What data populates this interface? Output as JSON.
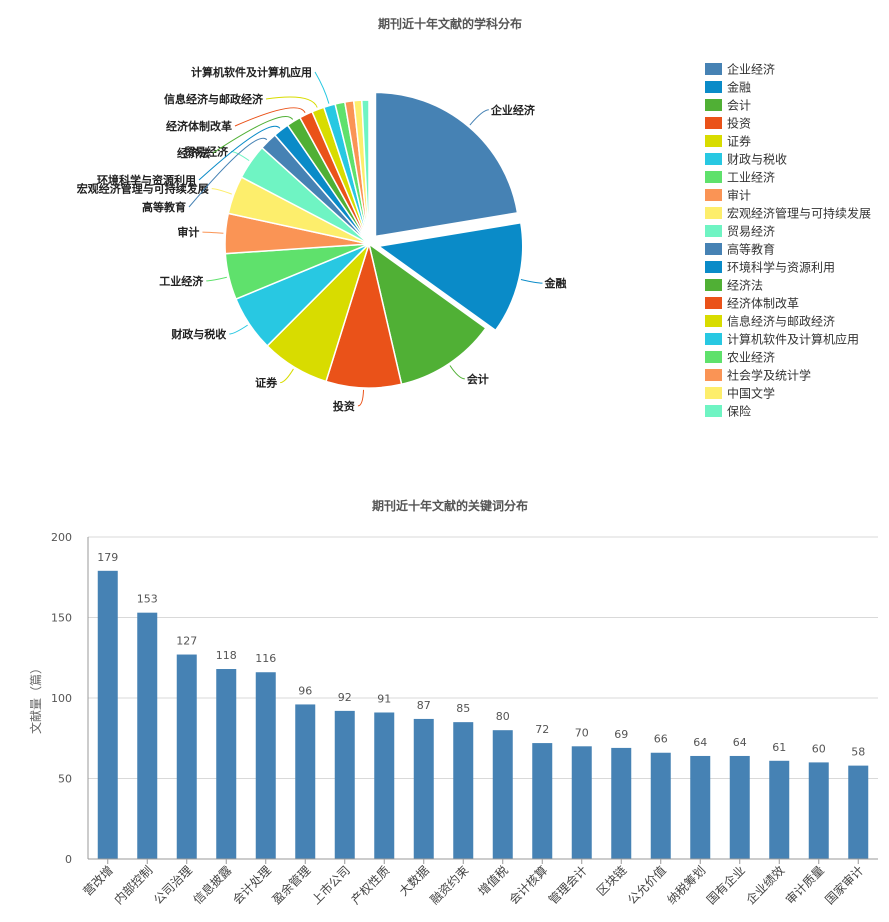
{
  "chart_data": [
    {
      "type": "pie",
      "title": "期刊近十年文献的学科分布",
      "legend_position": "right",
      "slices": [
        {
          "name": "企业经济",
          "value": 22.5,
          "color": "#4682b4"
        },
        {
          "name": "金融",
          "value": 12.6,
          "color": "#0a8bc8"
        },
        {
          "name": "会计",
          "value": 11.5,
          "color": "#50b035"
        },
        {
          "name": "投资",
          "value": 8.5,
          "color": "#ea5219"
        },
        {
          "name": "证券",
          "value": 7.7,
          "color": "#d8dc00"
        },
        {
          "name": "财政与税收",
          "value": 6.3,
          "color": "#28c8e2"
        },
        {
          "name": "工业经济",
          "value": 5.2,
          "color": "#5fe16c"
        },
        {
          "name": "审计",
          "value": 4.5,
          "color": "#fa9455"
        },
        {
          "name": "宏观经济管理与可持续发展",
          "value": 4.3,
          "color": "#fdee6c"
        },
        {
          "name": "贸易经济",
          "value": 4.0,
          "color": "#6ff4c3"
        },
        {
          "name": "高等教育",
          "value": 2.0,
          "color": "#4682b4"
        },
        {
          "name": "环境科学与资源利用",
          "value": 1.8,
          "color": "#0a8bc8"
        },
        {
          "name": "经济法",
          "value": 1.6,
          "color": "#50b035"
        },
        {
          "name": "经济体制改革",
          "value": 1.5,
          "color": "#ea5219"
        },
        {
          "name": "信息经济与邮政经济",
          "value": 1.4,
          "color": "#d8dc00"
        },
        {
          "name": "计算机软件及计算机应用",
          "value": 1.3,
          "color": "#28c8e2"
        },
        {
          "name": "农业经济",
          "value": 1.1,
          "color": "#5fe16c"
        },
        {
          "name": "社会学及统计学",
          "value": 1.0,
          "color": "#fa9455"
        },
        {
          "name": "中国文学",
          "value": 0.9,
          "color": "#fdee6c"
        },
        {
          "name": "保险",
          "value": 0.8,
          "color": "#6ff4c3"
        }
      ],
      "labeled_slices": [
        "企业经济",
        "金融",
        "会计",
        "投资",
        "证券",
        "财政与税收",
        "工业经济",
        "审计",
        "宏观经济管理与可持续发展",
        "贸易经济",
        "高等教育",
        "环境科学与资源利用",
        "经济法",
        "经济体制改革",
        "信息经济与邮政经济",
        "计算机软件及计算机应用"
      ],
      "exploded_slices": [
        "企业经济",
        "金融"
      ]
    },
    {
      "type": "bar",
      "title": "期刊近十年文献的关键词分布",
      "ylabel": "文献量（篇）",
      "ylim": [
        0,
        200
      ],
      "yticks": [
        0,
        50,
        100,
        150,
        200
      ],
      "color": "#4682b4",
      "categories": [
        "营改增",
        "内部控制",
        "公司治理",
        "信息披露",
        "会计处理",
        "盈余管理",
        "上市公司",
        "产权性质",
        "大数据",
        "融资约束",
        "增值税",
        "会计核算",
        "管理会计",
        "区块链",
        "公允价值",
        "纳税筹划",
        "国有企业",
        "企业绩效",
        "审计质量",
        "国家审计"
      ],
      "values": [
        179,
        153,
        127,
        118,
        116,
        96,
        92,
        91,
        87,
        85,
        80,
        72,
        70,
        69,
        66,
        64,
        64,
        61,
        60,
        58
      ]
    }
  ]
}
